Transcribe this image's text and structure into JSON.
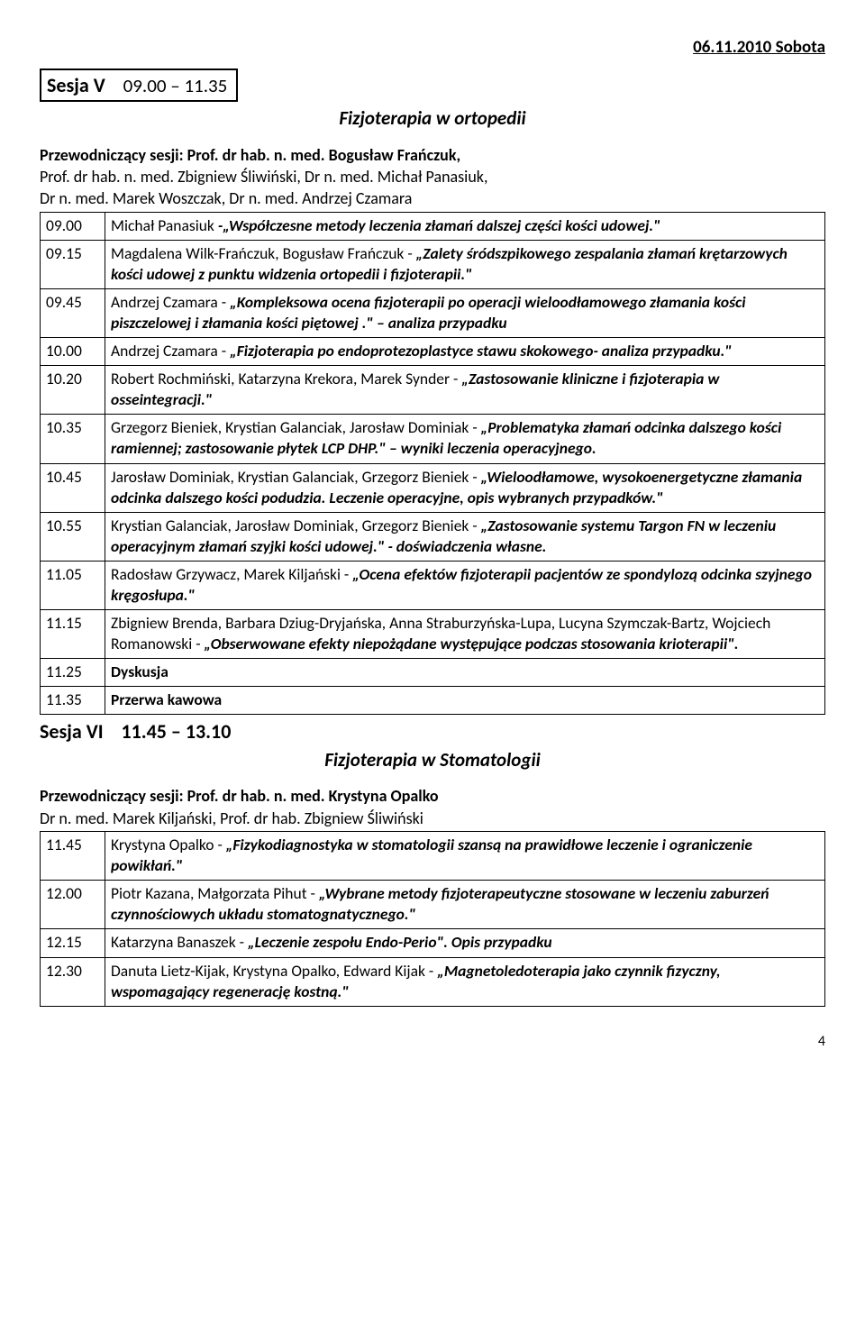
{
  "date_header": "06.11.2010 Sobota",
  "sessionV": {
    "label": "Sesja V",
    "time": "09.00 – 11.35",
    "topic": "Fizjoterapia w ortopedii",
    "chairs_lead": "Przewodniczący sesji: Prof. dr hab. n. med. Bogusław Frańczuk,",
    "chairs_rest": "Prof. dr hab. n. med. Zbigniew Śliwiński, Dr n. med. Michał Panasiuk,\nDr n. med. Marek Woszczak, Dr n. med. Andrzej Czamara"
  },
  "rows": [
    {
      "time": "09.00",
      "plain1": "Michał Panasiuk ",
      "bi": "-„Współczesne metody leczenia złamań dalszej części kości udowej.\""
    },
    {
      "time": "09.15",
      "plain1": "Magdalena Wilk-Frańczuk, Bogusław Frańczuk - ",
      "bi": "„Zalety śródszpikowego zespalania złamań krętarzowych kości udowej z punktu widzenia ortopedii i fizjoterapii.\""
    },
    {
      "time": "09.45",
      "plain1": "Andrzej Czamara - ",
      "bi": "„Kompleksowa ocena fizjoterapii po operacji wieloodłamowego złamania kości piszczelowej i złamania kości piętowej .\" – analiza przypadku"
    },
    {
      "time": "10.00",
      "plain1": "Andrzej Czamara - ",
      "bi": "„Fizjoterapia po endoprotezoplastyce stawu skokowego- analiza przypadku.\""
    },
    {
      "time": "10.20",
      "plain1": "Robert Rochmiński, Katarzyna Krekora, Marek Synder - ",
      "bi": "„Zastosowanie kliniczne i fizjoterapia w osseintegracji.\""
    },
    {
      "time": "10.35",
      "plain1": "Grzegorz Bieniek, Krystian Galanciak, Jarosław Dominiak - ",
      "bi": "„Problematyka złamań odcinka dalszego kości ramiennej; zastosowanie płytek LCP DHP.\" – wyniki leczenia operacyjnego."
    },
    {
      "time": "10.45",
      "plain1": "Jarosław Dominiak, Krystian Galanciak,  Grzegorz Bieniek - ",
      "bi": "„Wieloodłamowe, wysokoenergetyczne złamania odcinka  dalszego kości podudzia. Leczenie operacyjne, opis wybranych przypadków.\""
    },
    {
      "time": "10.55",
      "plain1": "Krystian Galanciak,  Jarosław Dominiak, Grzegorz Bieniek - ",
      "bi": "„Zastosowanie systemu Targon FN w leczeniu operacyjnym złamań szyjki kości udowej.\" - doświadczenia własne."
    },
    {
      "time": "11.05",
      "plain1": "Radosław Grzywacz, Marek Kiljański - ",
      "bi": "„Ocena efektów fizjoterapii pacjentów ze spondylozą odcinka szyjnego kręgosłupa.\""
    },
    {
      "time": "11.15",
      "plain1": "Zbigniew Brenda, Barbara Dziug-Dryjańska, Anna Straburzyńska-Lupa, Lucyna Szymczak-Bartz, Wojciech Romanowski - ",
      "bi": "„Obserwowane efekty niepożądane występujące podczas stosowania krioterapii\"."
    },
    {
      "time": "11.25",
      "bold": "Dyskusja"
    },
    {
      "time": "11.35",
      "bold": "Przerwa kawowa"
    }
  ],
  "sessionVI": {
    "label": "Sesja  VI",
    "time": "11.45 – 13.10",
    "topic": "Fizjoterapia w Stomatologii",
    "chairs_lead": "Przewodniczący sesji: Prof. dr hab. n. med. Krystyna Opalko",
    "chairs_rest": "Dr n. med. Marek Kiljański, Prof. dr hab. Zbigniew Śliwiński"
  },
  "rows2": [
    {
      "time": "11.45",
      "plain1": "Krystyna Opalko - ",
      "bi": "„Fizykodiagnostyka w stomatologii szansą na prawidłowe leczenie i ograniczenie powikłań.\""
    },
    {
      "time": "12.00",
      "plain1": "Piotr Kazana, Małgorzata Pihut -  ",
      "bi": "„Wybrane metody fizjoterapeutyczne stosowane w leczeniu zaburzeń czynnościowych układu stomatognatycznego.\""
    },
    {
      "time": "12.15",
      "plain1": "Katarzyna Banaszek - ",
      "bi": "„Leczenie zespołu Endo-Perio\". Opis przypadku"
    },
    {
      "time": "12.30",
      "plain1": "Danuta Lietz-Kijak, Krystyna Opalko, Edward Kijak - ",
      "bi": "„Magnetoledoterapia jako czynnik fizyczny, wspomagający regenerację kostną.\""
    }
  ],
  "page_num": "4"
}
